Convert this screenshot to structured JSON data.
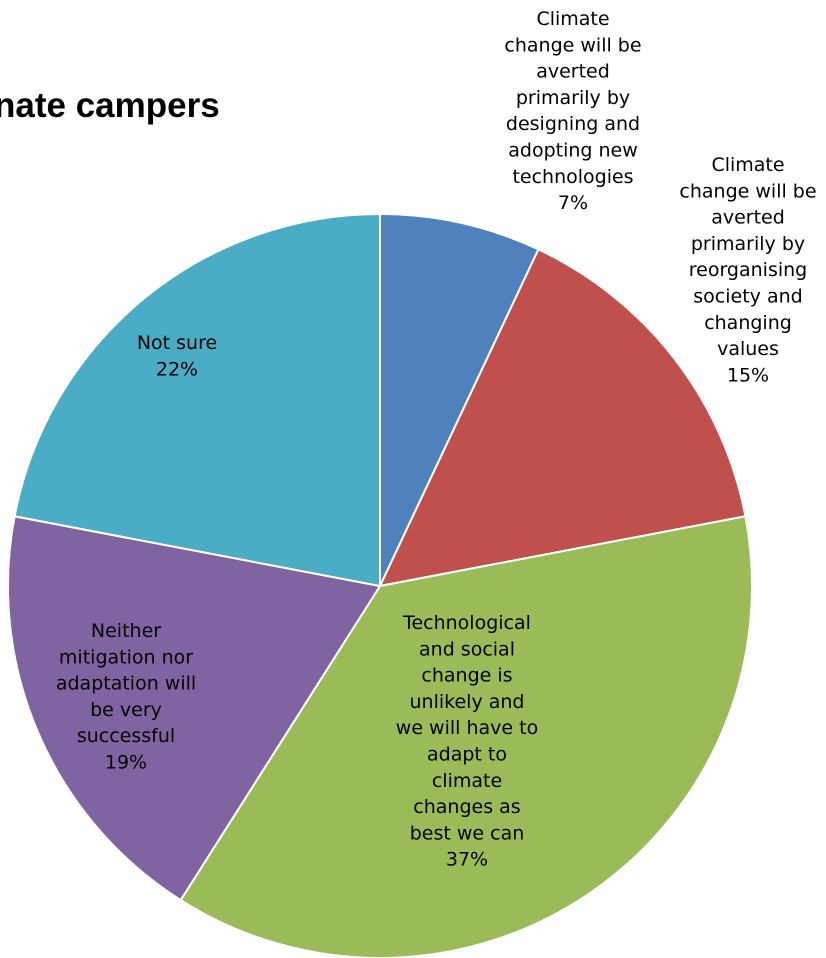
{
  "chart_data": {
    "type": "pie",
    "title": "nate campers",
    "slices": [
      {
        "label_lines": [
          "Climate",
          "change will be",
          "averted",
          "primarily by",
          "designing and",
          "adopting new",
          "technologies"
        ],
        "percent_label": "7%",
        "value": 7,
        "color": "#4F81BD"
      },
      {
        "label_lines": [
          "Climate",
          "change will be",
          "averted",
          "primarily by",
          "reorganising",
          "society and",
          "changing",
          "values"
        ],
        "percent_label": "15%",
        "value": 15,
        "color": "#C0504D"
      },
      {
        "label_lines": [
          "Technological",
          "and social",
          "change is",
          "unlikely and",
          "we will have to",
          "adapt to",
          "climate",
          "changes as",
          "best we can"
        ],
        "percent_label": "37%",
        "value": 37,
        "color": "#9BBB59"
      },
      {
        "label_lines": [
          "Neither",
          "mitigation nor",
          "adaptation will",
          "be very",
          "successful"
        ],
        "percent_label": "19%",
        "value": 19,
        "color": "#8064A2"
      },
      {
        "label_lines": [
          "Not sure"
        ],
        "percent_label": "22%",
        "value": 22,
        "color": "#4BACC6"
      }
    ],
    "legend": "none"
  }
}
